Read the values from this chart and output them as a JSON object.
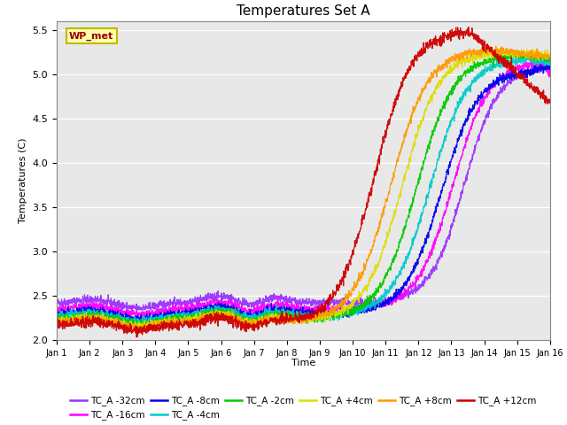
{
  "title": "Temperatures Set A",
  "xlabel": "Time",
  "ylabel": "Temperatures (C)",
  "ylim": [
    2.0,
    5.6
  ],
  "xlim": [
    0,
    15
  ],
  "xtick_labels": [
    "Jan 1",
    "Jan 2",
    "Jan 3",
    "Jan 4",
    "Jan 5",
    "Jan 6",
    "Jan 7",
    "Jan 8",
    "Jan 9",
    "Jan 10",
    "Jan 11",
    "Jan 12",
    "Jan 13",
    "Jan 14",
    "Jan 15",
    "Jan 16"
  ],
  "ytick_values": [
    2.0,
    2.5,
    3.0,
    3.5,
    4.0,
    4.5,
    5.0,
    5.5
  ],
  "series": [
    {
      "label": "TC_A -32cm",
      "color": "#9933FF"
    },
    {
      "label": "TC_A -16cm",
      "color": "#FF00FF"
    },
    {
      "label": "TC_A -8cm",
      "color": "#0000EE"
    },
    {
      "label": "TC_A -4cm",
      "color": "#00CCCC"
    },
    {
      "label": "TC_A -2cm",
      "color": "#00CC00"
    },
    {
      "label": "TC_A +4cm",
      "color": "#DDDD00"
    },
    {
      "label": "TC_A +8cm",
      "color": "#FF9900"
    },
    {
      "label": "TC_A +12cm",
      "color": "#CC0000"
    }
  ],
  "bg_color": "#E8E8E8",
  "n_points": 2000,
  "series_params": [
    {
      "rise_start": 9.8,
      "rise_end": 15.0,
      "base_low": 2.42,
      "peak": 5.1,
      "end_val": 4.95,
      "noise": 0.022
    },
    {
      "rise_start": 9.3,
      "rise_end": 14.8,
      "base_low": 2.35,
      "peak": 5.15,
      "end_val": 5.0,
      "noise": 0.022
    },
    {
      "rise_start": 8.9,
      "rise_end": 14.5,
      "base_low": 2.3,
      "peak": 5.05,
      "end_val": 5.08,
      "noise": 0.022
    },
    {
      "rise_start": 8.5,
      "rise_end": 14.2,
      "base_low": 2.27,
      "peak": 5.18,
      "end_val": 5.12,
      "noise": 0.022
    },
    {
      "rise_start": 8.1,
      "rise_end": 13.8,
      "base_low": 2.24,
      "peak": 5.22,
      "end_val": 5.18,
      "noise": 0.022
    },
    {
      "rise_start": 7.7,
      "rise_end": 13.3,
      "base_low": 2.22,
      "peak": 5.25,
      "end_val": 5.22,
      "noise": 0.022
    },
    {
      "rise_start": 7.3,
      "rise_end": 13.0,
      "base_low": 2.2,
      "peak": 5.28,
      "end_val": 5.2,
      "noise": 0.022
    },
    {
      "rise_start": 6.8,
      "rise_end": 12.5,
      "base_low": 2.17,
      "peak": 5.5,
      "end_val": 4.68,
      "noise": 0.028
    }
  ]
}
